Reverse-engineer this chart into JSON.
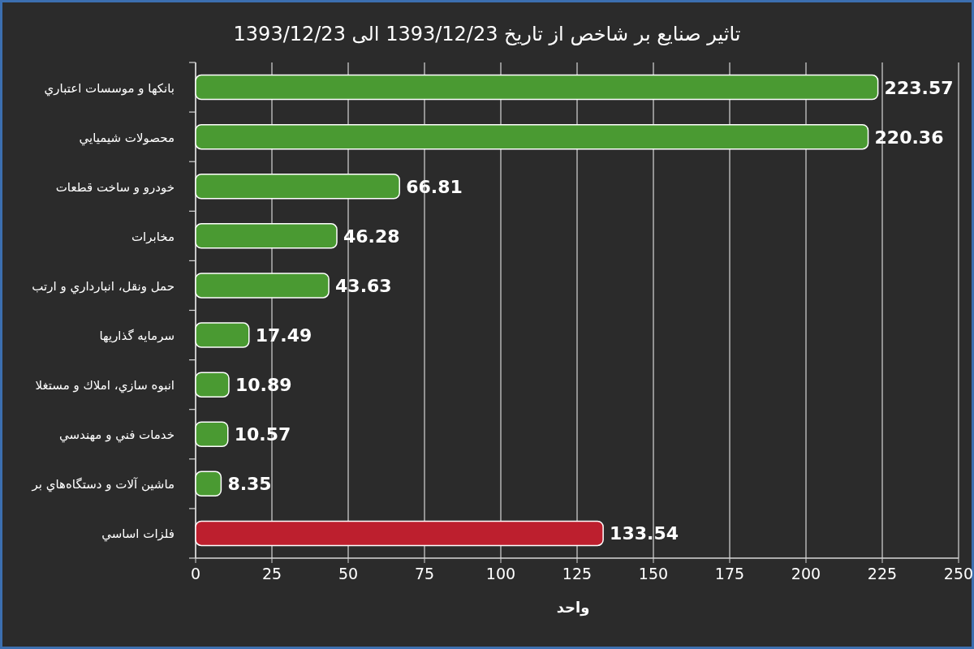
{
  "chart_data": {
    "type": "bar",
    "orientation": "horizontal",
    "title": "تاثیر صنایع بر شاخص از تاریخ 1393/12/23 الی 1393/12/23",
    "xlabel": "واحد",
    "categories": [
      "بانکها و موسسات اعتباري",
      "محصولات شيميايي",
      "خودرو و ساخت قطعات",
      "مخابرات",
      "حمل ونقل، انبارداري و ارتب",
      "سرمايه گذاريها",
      "انبوه سازي، املاك و مستغلا",
      "خدمات فني و مهندسي",
      "ماشين آلات و دستگاه‌هاي بر",
      "فلزات اساسي"
    ],
    "values": [
      223.57,
      220.36,
      66.81,
      46.28,
      43.63,
      17.49,
      10.89,
      10.57,
      8.35,
      133.54
    ],
    "colors": [
      "#4a9a32",
      "#4a9a32",
      "#4a9a32",
      "#4a9a32",
      "#4a9a32",
      "#4a9a32",
      "#4a9a32",
      "#4a9a32",
      "#4a9a32",
      "#bd1f2e"
    ],
    "xlim": [
      0,
      250
    ],
    "xticks": [
      0,
      25,
      50,
      75,
      100,
      125,
      150,
      175,
      200,
      225,
      250
    ],
    "grid": "x",
    "data_labels": true
  }
}
